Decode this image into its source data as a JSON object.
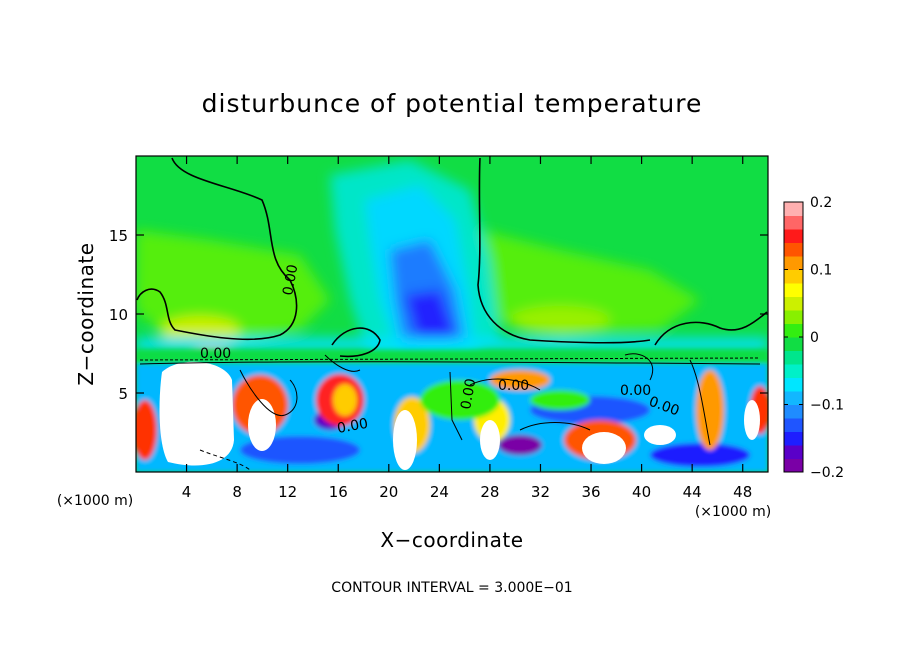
{
  "chart_data": {
    "type": "heatmap",
    "title": "disturbunce of potential temperature",
    "xlabel": "X−coordinate",
    "ylabel": "Z−coordinate",
    "x_unit": "(×1000 m)",
    "z_unit": "(×1000 m)",
    "xlim": [
      0,
      50
    ],
    "ylim": [
      0,
      20
    ],
    "x_ticks": [
      4,
      8,
      12,
      16,
      20,
      24,
      28,
      32,
      36,
      40,
      44,
      48
    ],
    "x_tick_labels": [
      "4",
      "8",
      "12",
      "16",
      "20",
      "24",
      "28",
      "32",
      "36",
      "40",
      "44",
      "48"
    ],
    "y_ticks": [
      5,
      10,
      15
    ],
    "y_tick_labels": [
      "5",
      "10",
      "15"
    ],
    "colorbar": {
      "range": [
        -0.2,
        0.2
      ],
      "ticks": [
        0.2,
        0.1,
        0,
        -0.1,
        -0.2
      ],
      "tick_labels": [
        "0.2",
        "0.1",
        "0",
        "−0.1",
        "−0.2"
      ],
      "colors": [
        "#7a00a6",
        "#5a00c8",
        "#1e1eff",
        "#1f55ff",
        "#1f8cff",
        "#12b7ff",
        "#00e6ff",
        "#00f0c8",
        "#00e68c",
        "#11dd44",
        "#33ee11",
        "#88f000",
        "#ccf000",
        "#ffff00",
        "#ffcc00",
        "#ff9900",
        "#ff5500",
        "#ff1a1a",
        "#ff6666",
        "#ffb0b0"
      ]
    },
    "contour_labels": [
      "0.00",
      "0.00",
      "0.00",
      "0.00",
      "0.00",
      "0.00",
      "0.00"
    ],
    "contour_note": "CONTOUR INTERVAL = 3.000E−01",
    "grid": false
  }
}
